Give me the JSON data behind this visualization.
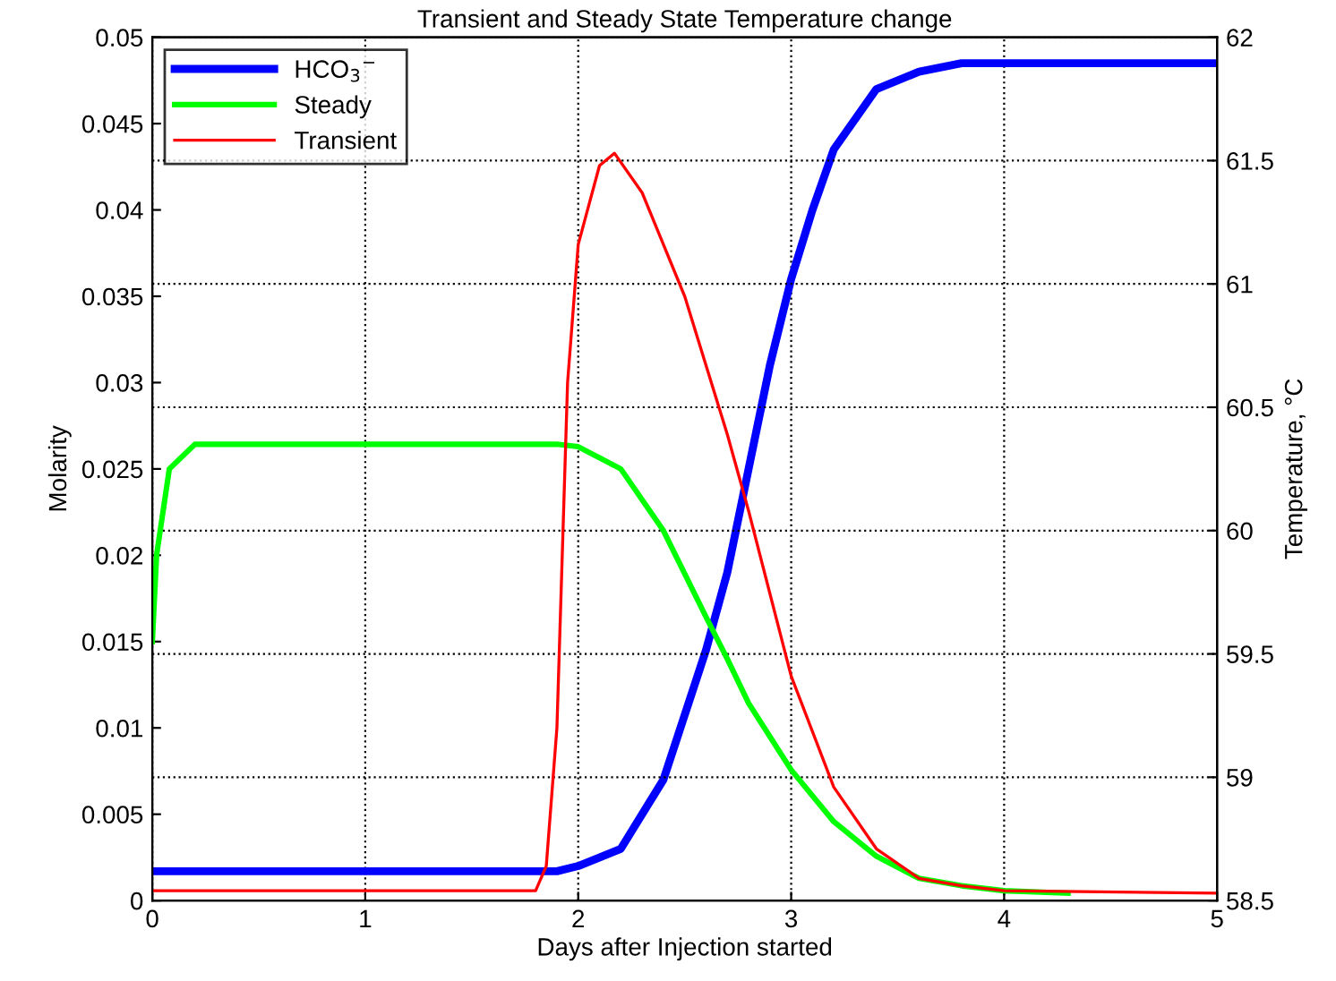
{
  "chart_data": {
    "type": "line",
    "title": "Transient and Steady State Temperature change",
    "xlabel": "Days after Injection started",
    "ylabel": "Molarity",
    "y2label": "Temperature, °C",
    "xlim": [
      0,
      5
    ],
    "xticks": [
      0,
      1,
      2,
      3,
      4,
      5
    ],
    "ylim": [
      0,
      0.05
    ],
    "yticks": [
      0,
      0.005,
      0.01,
      0.015,
      0.02,
      0.025,
      0.03,
      0.035,
      0.04,
      0.045,
      0.05
    ],
    "y2lim": [
      58.5,
      62
    ],
    "y2ticks": [
      58.5,
      59,
      59.5,
      60,
      60.5,
      61,
      61.5,
      62
    ],
    "grid": true,
    "legend": "top left",
    "series": [
      {
        "name": "HCO$_{3}$$^{−}$",
        "color": "#0000ff",
        "x": [
          0,
          1.9,
          2.0,
          2.2,
          2.4,
          2.6,
          2.7,
          2.8,
          2.9,
          3.0,
          3.1,
          3.2,
          3.4,
          3.6,
          3.8,
          4.0,
          5.0
        ],
        "values": [
          0.0017,
          0.0017,
          0.002,
          0.003,
          0.007,
          0.0145,
          0.019,
          0.025,
          0.031,
          0.036,
          0.04,
          0.0435,
          0.047,
          0.048,
          0.0485,
          0.0485,
          0.0485
        ]
      },
      {
        "name": "Steady",
        "color": "#00ff00",
        "axis": "y2",
        "x": [
          0,
          0.02,
          0.08,
          0.2,
          1.9,
          2.0,
          2.2,
          2.4,
          2.6,
          2.7,
          2.8,
          3.0,
          3.2,
          3.4,
          3.6,
          3.8,
          4.0,
          4.3
        ],
        "values": [
          59.55,
          59.9,
          60.25,
          60.35,
          60.35,
          60.34,
          60.25,
          60.0,
          59.65,
          59.48,
          59.3,
          59.03,
          58.82,
          58.68,
          58.59,
          58.56,
          58.54,
          58.53
        ]
      },
      {
        "name": "Transient",
        "color": "#ff0000",
        "axis": "y2",
        "x": [
          0,
          1.8,
          1.85,
          1.9,
          1.95,
          2.0,
          2.1,
          2.17,
          2.3,
          2.5,
          2.7,
          2.8,
          3.0,
          3.2,
          3.4,
          3.6,
          3.8,
          4.0,
          5.0
        ],
        "values": [
          58.54,
          58.54,
          58.64,
          59.2,
          60.6,
          61.16,
          61.48,
          61.53,
          61.37,
          60.95,
          60.39,
          60.08,
          59.41,
          58.96,
          58.71,
          58.59,
          58.56,
          58.54,
          58.53
        ]
      }
    ]
  }
}
